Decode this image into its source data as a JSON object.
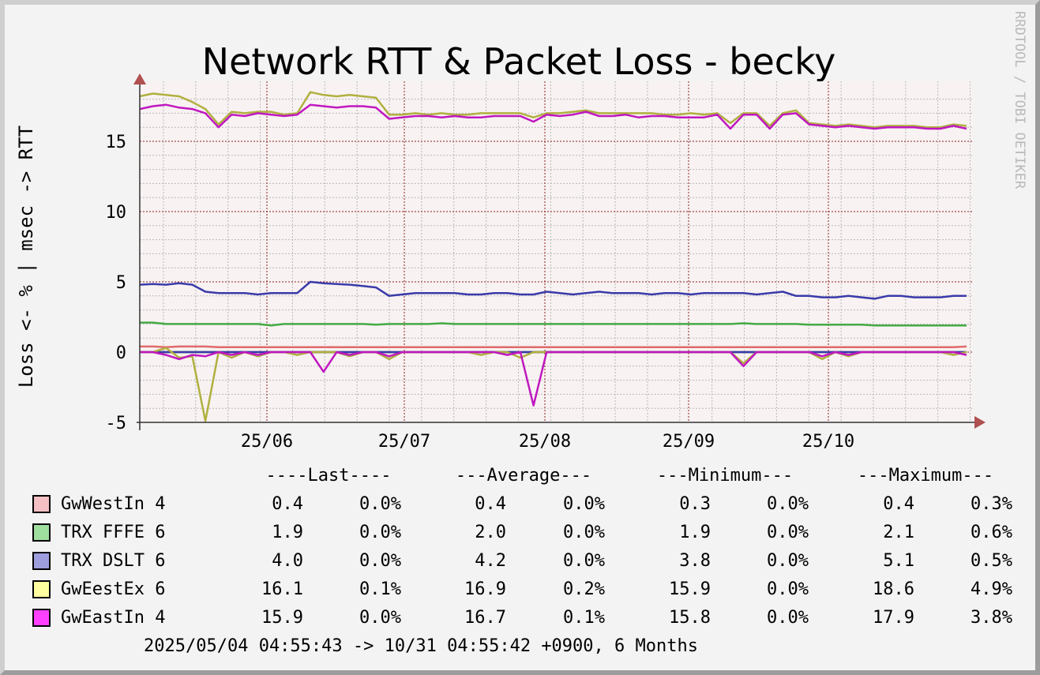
{
  "chart_data": {
    "type": "line",
    "title": "Network RTT & Packet Loss - becky",
    "ylabel": "Loss <- % | msec -> RTT",
    "watermark": "RRDTOOL / TOBI OETIKER",
    "x_range": [
      "2025/05/04",
      "2025/10/31"
    ],
    "x_ticks": [
      "25/06",
      "25/07",
      "25/08",
      "25/09",
      "25/10"
    ],
    "y_ticks": [
      "-5",
      "0",
      "5",
      "10",
      "15"
    ],
    "ylim": [
      -5,
      18.5
    ],
    "grid": true,
    "colors": {
      "background": "#f3f3f3",
      "plot_background": "#f8f2f2",
      "major_grid": "#8b1d1d",
      "minor_grid": "#b8b8b8",
      "axis": "#333333",
      "arrow": "#b05050"
    },
    "series": [
      {
        "name": "GwWestIn 4",
        "color": "#e06a6a",
        "swatch": "#f4c0c4",
        "rtt": [
          0.4,
          0.4,
          0.35,
          0.4,
          0.4,
          0.4,
          0.35,
          0.35,
          0.35,
          0.35,
          0.35,
          0.35,
          0.35,
          0.35,
          0.35,
          0.35,
          0.35,
          0.35,
          0.35,
          0.35,
          0.35,
          0.35,
          0.35,
          0.35,
          0.35,
          0.35,
          0.35,
          0.35,
          0.35,
          0.35,
          0.35,
          0.35,
          0.35,
          0.35,
          0.35,
          0.35,
          0.35,
          0.35,
          0.35,
          0.35,
          0.35,
          0.35,
          0.35,
          0.35,
          0.35,
          0.35,
          0.35,
          0.35,
          0.35,
          0.35,
          0.35,
          0.35,
          0.35,
          0.35,
          0.35,
          0.35,
          0.35,
          0.35,
          0.35,
          0.35,
          0.35,
          0.35,
          0.35,
          0.4
        ],
        "loss": [
          0,
          0,
          0,
          0,
          0,
          0,
          0,
          0,
          0,
          0,
          0,
          0,
          0,
          0,
          0,
          0,
          0,
          0,
          0,
          0,
          0,
          0,
          0,
          0,
          0,
          0,
          0,
          0,
          0,
          0,
          0,
          0,
          0,
          0,
          0,
          0,
          0,
          0,
          0,
          0,
          0,
          0,
          0,
          0,
          0,
          0,
          0,
          0,
          0,
          0,
          0,
          0,
          0,
          0,
          0,
          0,
          0,
          0,
          0,
          0,
          0,
          0,
          0,
          0
        ],
        "stats": {
          "last": "0.4",
          "last_loss": "0.0%",
          "avg": "0.4",
          "avg_loss": "0.0%",
          "min": "0.3",
          "min_loss": "0.0%",
          "max": "0.4",
          "max_loss": "0.3%"
        }
      },
      {
        "name": "TRX FFFE 6",
        "color": "#44aa44",
        "swatch": "#9ede9e",
        "rtt": [
          2.1,
          2.1,
          2.0,
          2.0,
          2.0,
          2.0,
          2.0,
          2.0,
          2.0,
          2.0,
          1.9,
          2.0,
          2.0,
          2.0,
          2.0,
          2.0,
          2.0,
          2.0,
          1.95,
          2.0,
          2.0,
          2.0,
          2.0,
          2.05,
          2.0,
          2.0,
          2.0,
          2.0,
          2.0,
          2.0,
          2.0,
          2.0,
          2.0,
          2.0,
          2.0,
          2.0,
          2.0,
          2.0,
          2.0,
          2.0,
          2.0,
          2.0,
          2.0,
          2.0,
          2.0,
          2.0,
          2.05,
          2.0,
          2.0,
          2.0,
          2.0,
          1.95,
          1.95,
          1.95,
          1.95,
          1.95,
          1.9,
          1.9,
          1.9,
          1.9,
          1.9,
          1.9,
          1.9,
          1.9
        ],
        "loss": [
          0,
          0,
          0,
          0,
          0,
          0,
          0,
          0,
          0,
          0,
          0,
          0,
          0,
          0,
          0,
          0,
          0,
          0,
          0,
          0,
          0,
          0,
          0,
          0,
          0,
          0,
          0,
          0,
          0,
          0,
          0,
          0,
          0,
          0,
          0,
          0,
          0,
          0,
          0,
          0,
          0,
          0,
          0,
          0,
          0,
          0,
          0,
          0,
          0,
          0,
          0,
          0,
          0,
          0,
          0,
          0,
          0,
          0,
          0,
          0,
          0,
          0,
          0,
          0
        ],
        "stats": {
          "last": "1.9",
          "last_loss": "0.0%",
          "avg": "2.0",
          "avg_loss": "0.0%",
          "min": "1.9",
          "min_loss": "0.0%",
          "max": "2.1",
          "max_loss": "0.6%"
        }
      },
      {
        "name": "TRX DSLT 6",
        "color": "#3a3aaa",
        "swatch": "#9e9ede",
        "rtt": [
          4.8,
          4.85,
          4.8,
          4.9,
          4.8,
          4.3,
          4.2,
          4.2,
          4.2,
          4.1,
          4.2,
          4.2,
          4.2,
          5.0,
          4.9,
          4.85,
          4.8,
          4.7,
          4.6,
          4.0,
          4.1,
          4.2,
          4.2,
          4.2,
          4.2,
          4.1,
          4.1,
          4.2,
          4.2,
          4.1,
          4.1,
          4.3,
          4.2,
          4.1,
          4.2,
          4.3,
          4.2,
          4.2,
          4.2,
          4.1,
          4.2,
          4.2,
          4.1,
          4.2,
          4.2,
          4.2,
          4.2,
          4.1,
          4.2,
          4.3,
          4.0,
          4.0,
          3.9,
          3.9,
          4.0,
          3.9,
          3.8,
          4.0,
          4.0,
          3.9,
          3.9,
          3.9,
          4.0,
          4.0
        ],
        "loss": [
          0,
          0,
          0,
          0,
          0,
          0,
          0,
          0,
          0,
          0,
          0,
          0,
          0,
          0,
          0,
          0,
          0,
          0,
          0,
          0,
          0,
          0,
          0,
          0,
          0,
          0,
          0,
          0,
          0,
          0,
          0,
          0,
          0,
          0,
          0,
          0,
          0,
          0,
          0,
          0,
          0,
          0,
          0,
          0,
          0,
          0,
          0,
          0,
          0,
          0,
          0,
          0,
          0,
          0,
          0,
          0,
          0,
          0,
          0,
          0,
          0,
          0,
          0,
          0
        ],
        "stats": {
          "last": "4.0",
          "last_loss": "0.0%",
          "avg": "4.2",
          "avg_loss": "0.0%",
          "min": "3.8",
          "min_loss": "0.0%",
          "max": "5.1",
          "max_loss": "0.5%"
        }
      },
      {
        "name": "GwEestEx 6",
        "color": "#b0b040",
        "swatch": "#ffffa0",
        "rtt": [
          18.2,
          18.4,
          18.3,
          18.2,
          17.8,
          17.3,
          16.2,
          17.1,
          17.0,
          17.1,
          17.1,
          16.9,
          17.0,
          18.5,
          18.3,
          18.2,
          18.3,
          18.2,
          18.1,
          16.9,
          16.9,
          17.0,
          16.9,
          17.0,
          16.9,
          16.9,
          17.0,
          17.0,
          17.0,
          17.0,
          16.7,
          17.0,
          17.0,
          17.1,
          17.2,
          17.0,
          17.0,
          17.0,
          17.0,
          17.0,
          16.9,
          16.9,
          17.0,
          16.9,
          17.0,
          16.3,
          17.0,
          17.0,
          16.1,
          17.0,
          17.2,
          16.3,
          16.2,
          16.1,
          16.2,
          16.1,
          16.0,
          16.1,
          16.1,
          16.1,
          16.0,
          16.0,
          16.2,
          16.1
        ],
        "loss": [
          0,
          0,
          0.3,
          -0.4,
          -0.3,
          -4.9,
          0,
          -0.4,
          0,
          -0.3,
          0,
          0,
          -0.2,
          0,
          0,
          0,
          -0.3,
          0,
          0,
          -0.5,
          0,
          0,
          0,
          0,
          0,
          0,
          -0.2,
          0,
          0,
          -0.4,
          0,
          0,
          0,
          0,
          0,
          0,
          0,
          0,
          0,
          0,
          0,
          0,
          0,
          0,
          0,
          0,
          -0.8,
          0,
          0,
          0,
          0,
          0,
          -0.5,
          0,
          -0.3,
          0,
          0,
          0,
          0,
          0,
          0,
          0,
          -0.2,
          0
        ],
        "stats": {
          "last": "16.1",
          "last_loss": "0.1%",
          "avg": "16.9",
          "avg_loss": "0.2%",
          "min": "15.9",
          "min_loss": "0.0%",
          "max": "18.6",
          "max_loss": "4.9%"
        }
      },
      {
        "name": "GwEastIn 4",
        "color": "#c018c0",
        "swatch": "#ff40ff",
        "rtt": [
          17.3,
          17.5,
          17.6,
          17.4,
          17.3,
          17.0,
          16.0,
          16.9,
          16.8,
          17.0,
          16.9,
          16.8,
          16.9,
          17.6,
          17.5,
          17.4,
          17.5,
          17.5,
          17.4,
          16.6,
          16.7,
          16.8,
          16.8,
          16.7,
          16.8,
          16.7,
          16.7,
          16.8,
          16.8,
          16.8,
          16.4,
          16.9,
          16.8,
          16.9,
          17.1,
          16.8,
          16.8,
          16.9,
          16.7,
          16.8,
          16.8,
          16.7,
          16.7,
          16.7,
          16.9,
          15.9,
          16.9,
          16.9,
          15.9,
          16.9,
          17.0,
          16.2,
          16.1,
          16.0,
          16.1,
          16.0,
          15.9,
          16.0,
          16.0,
          16.0,
          15.9,
          15.9,
          16.1,
          15.9
        ],
        "loss": [
          0,
          0,
          -0.2,
          -0.5,
          -0.2,
          -0.3,
          0,
          -0.2,
          0,
          -0.2,
          0,
          0,
          0,
          0,
          -1.4,
          0,
          -0.2,
          0,
          0,
          -0.3,
          0,
          0,
          0,
          0,
          0,
          0,
          0,
          0,
          -0.2,
          0,
          -3.8,
          0,
          0,
          0,
          0,
          0,
          0,
          0,
          0,
          0,
          0,
          0,
          0,
          0,
          0,
          0,
          -1.0,
          0,
          0,
          0,
          0,
          0,
          -0.3,
          0,
          -0.2,
          0,
          0,
          0,
          0,
          0,
          0,
          0,
          0,
          -0.2
        ],
        "stats": {
          "last": "15.9",
          "last_loss": "0.0%",
          "avg": "16.7",
          "avg_loss": "0.1%",
          "min": "15.8",
          "min_loss": "0.0%",
          "max": "17.9",
          "max_loss": "3.8%"
        }
      }
    ],
    "legend_headers": {
      "last": "----Last----",
      "average": "---Average---",
      "minimum": "---Minimum---",
      "maximum": "---Maximum---"
    },
    "footer": "2025/05/04 04:55:43 -> 10/31 04:55:42 +0900, 6 Months"
  }
}
